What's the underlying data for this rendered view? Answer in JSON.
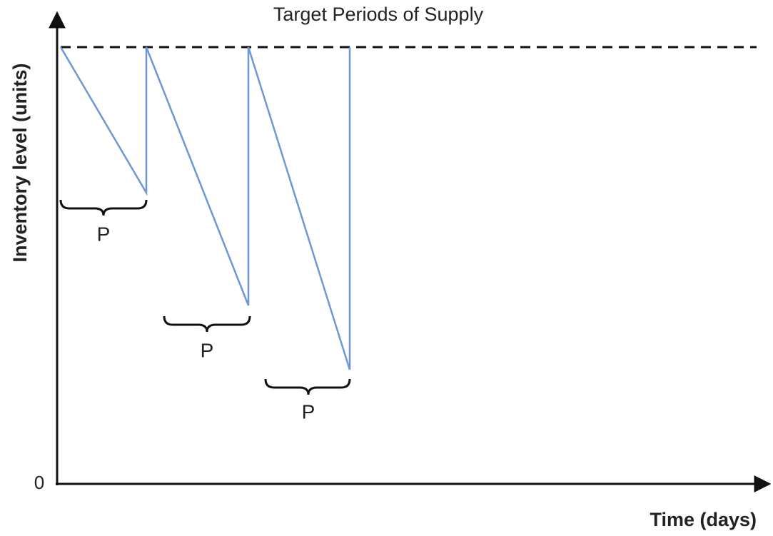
{
  "title": "Target Periods of Supply",
  "y_axis_label": "Inventory level (units)",
  "x_axis_label": "Time (days)",
  "origin_label": "0",
  "periods": [
    {
      "label": "P"
    },
    {
      "label": "P"
    },
    {
      "label": "P"
    }
  ]
}
